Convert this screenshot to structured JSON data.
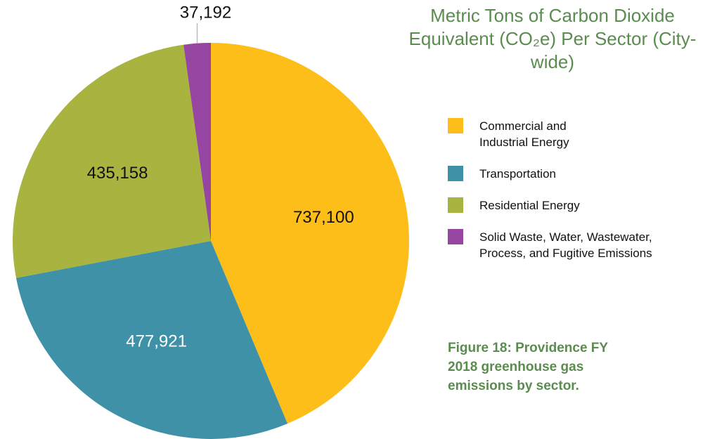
{
  "chart_data": {
    "type": "pie",
    "title": "Metric Tons of Carbon Dioxide Equivalent (CO₂e) Per Sector (City-wide)",
    "categories": [
      "Commercial and Industrial Energy",
      "Transportation",
      "Residential Energy",
      "Solid Waste, Water, Wastewater, Process, and Fugitive Emissions"
    ],
    "values": [
      737100,
      477921,
      435158,
      37192
    ],
    "value_labels": [
      "737,100",
      "477,921",
      "435,158",
      "37,192"
    ],
    "colors": [
      "#fdbe19",
      "#3f91a7",
      "#a9b33f",
      "#9646a0"
    ],
    "caption": "Figure 18: Providence FY 2018 greenhouse gas emissions by sector."
  }
}
